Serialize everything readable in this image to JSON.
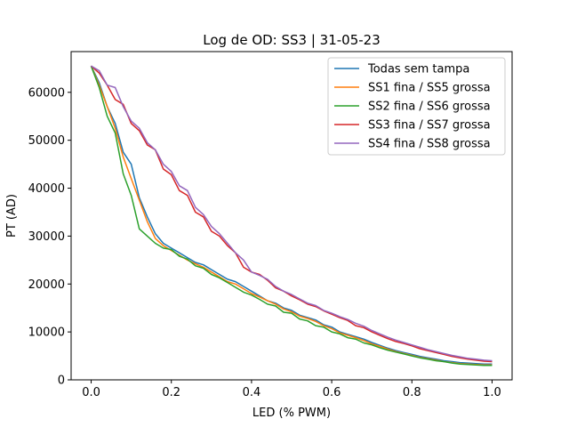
{
  "chart_data": {
    "type": "line",
    "title": "Log de OD: SS3 | 31-05-23",
    "xlabel": "LED (% PWM)",
    "ylabel": "PT (AD)",
    "xlim": [
      -0.05,
      1.05
    ],
    "ylim": [
      0,
      68500
    ],
    "xticks": [
      0.0,
      0.2,
      0.4,
      0.6,
      0.8,
      1.0
    ],
    "xtick_labels": [
      "0.0",
      "0.2",
      "0.4",
      "0.6",
      "0.8",
      "1.0"
    ],
    "yticks": [
      0,
      10000,
      20000,
      30000,
      40000,
      50000,
      60000
    ],
    "ytick_labels": [
      "0",
      "10000",
      "20000",
      "30000",
      "40000",
      "50000",
      "60000"
    ],
    "grid": false,
    "legend_position": "top-right",
    "series": [
      {
        "name": "Todas sem tampa",
        "color": "#1f77b4",
        "x": [
          0.0,
          0.02,
          0.04,
          0.06,
          0.08,
          0.1,
          0.12,
          0.14,
          0.16,
          0.18,
          0.2,
          0.22,
          0.24,
          0.26,
          0.28,
          0.3,
          0.32,
          0.34,
          0.36,
          0.38,
          0.4,
          0.42,
          0.44,
          0.46,
          0.48,
          0.5,
          0.52,
          0.54,
          0.56,
          0.58,
          0.6,
          0.62,
          0.64,
          0.66,
          0.68,
          0.7,
          0.72,
          0.74,
          0.76,
          0.78,
          0.8,
          0.82,
          0.84,
          0.86,
          0.88,
          0.9,
          0.92,
          0.94,
          0.96,
          0.98,
          1.0
        ],
        "values": [
          65500,
          62000,
          57000,
          53500,
          47500,
          45000,
          38000,
          34000,
          30500,
          28500,
          27500,
          26500,
          25500,
          24500,
          24000,
          23000,
          22000,
          21000,
          20500,
          19500,
          18500,
          17500,
          16500,
          16000,
          15000,
          14500,
          13500,
          13000,
          12500,
          11500,
          11000,
          10000,
          9500,
          9000,
          8500,
          7800,
          7200,
          6600,
          6100,
          5700,
          5300,
          4900,
          4600,
          4300,
          4000,
          3800,
          3600,
          3500,
          3400,
          3300,
          3300
        ]
      },
      {
        "name": "SS1 fina / SS5 grossa",
        "color": "#ff7f0e",
        "x": [
          0.0,
          0.02,
          0.04,
          0.06,
          0.08,
          0.1,
          0.12,
          0.14,
          0.16,
          0.18,
          0.2,
          0.22,
          0.24,
          0.26,
          0.28,
          0.3,
          0.32,
          0.34,
          0.36,
          0.38,
          0.4,
          0.42,
          0.44,
          0.46,
          0.48,
          0.5,
          0.52,
          0.54,
          0.56,
          0.58,
          0.6,
          0.62,
          0.64,
          0.66,
          0.68,
          0.7,
          0.72,
          0.74,
          0.76,
          0.78,
          0.8,
          0.82,
          0.84,
          0.86,
          0.88,
          0.9,
          0.92,
          0.94,
          0.96,
          0.98,
          1.0
        ],
        "values": [
          65500,
          61500,
          57000,
          52500,
          46500,
          42000,
          37500,
          33000,
          29500,
          28000,
          27000,
          26000,
          25000,
          24200,
          23500,
          22500,
          21500,
          20500,
          20000,
          19000,
          18000,
          17300,
          16500,
          15800,
          14800,
          14200,
          13300,
          12800,
          12200,
          11300,
          10700,
          9800,
          9300,
          8800,
          8200,
          7500,
          7000,
          6400,
          5900,
          5500,
          5100,
          4700,
          4400,
          4100,
          3800,
          3600,
          3400,
          3300,
          3200,
          3100,
          3100
        ]
      },
      {
        "name": "SS2 fina / SS6 grossa",
        "color": "#2ca02c",
        "x": [
          0.0,
          0.02,
          0.04,
          0.06,
          0.08,
          0.1,
          0.12,
          0.14,
          0.16,
          0.18,
          0.2,
          0.22,
          0.24,
          0.26,
          0.28,
          0.3,
          0.32,
          0.34,
          0.36,
          0.38,
          0.4,
          0.42,
          0.44,
          0.46,
          0.48,
          0.5,
          0.52,
          0.54,
          0.56,
          0.58,
          0.6,
          0.62,
          0.64,
          0.66,
          0.68,
          0.7,
          0.72,
          0.74,
          0.76,
          0.78,
          0.8,
          0.82,
          0.84,
          0.86,
          0.88,
          0.9,
          0.92,
          0.94,
          0.96,
          0.98,
          1.0
        ],
        "values": [
          65500,
          61000,
          55000,
          51500,
          43000,
          38500,
          31500,
          30000,
          28500,
          27500,
          27200,
          25800,
          25200,
          23800,
          23300,
          22000,
          21300,
          20300,
          19300,
          18300,
          17700,
          16800,
          15800,
          15400,
          14100,
          13900,
          12700,
          12300,
          11300,
          11000,
          10000,
          9600,
          8800,
          8500,
          7700,
          7300,
          6700,
          6200,
          5800,
          5400,
          5000,
          4600,
          4300,
          4000,
          3800,
          3500,
          3300,
          3200,
          3100,
          3000,
          3000
        ]
      },
      {
        "name": "SS3 fina / SS7 grossa",
        "color": "#d62728",
        "x": [
          0.0,
          0.02,
          0.04,
          0.06,
          0.08,
          0.1,
          0.12,
          0.14,
          0.16,
          0.18,
          0.2,
          0.22,
          0.24,
          0.26,
          0.28,
          0.3,
          0.32,
          0.34,
          0.36,
          0.38,
          0.4,
          0.42,
          0.44,
          0.46,
          0.48,
          0.5,
          0.52,
          0.54,
          0.56,
          0.58,
          0.6,
          0.62,
          0.64,
          0.66,
          0.68,
          0.7,
          0.72,
          0.74,
          0.76,
          0.78,
          0.8,
          0.82,
          0.84,
          0.86,
          0.88,
          0.9,
          0.92,
          0.94,
          0.96,
          0.98,
          1.0
        ],
        "values": [
          65500,
          64000,
          61500,
          58500,
          57500,
          53500,
          52000,
          49000,
          48000,
          44000,
          42800,
          39500,
          38500,
          35000,
          34000,
          31000,
          30000,
          28000,
          26500,
          23500,
          22500,
          22000,
          20800,
          19200,
          18500,
          17500,
          16700,
          15800,
          15300,
          14400,
          13700,
          13000,
          12400,
          11300,
          10900,
          10000,
          9300,
          8600,
          8000,
          7600,
          7100,
          6500,
          6100,
          5700,
          5300,
          4900,
          4600,
          4300,
          4100,
          3900,
          3800
        ]
      },
      {
        "name": "SS4 fina / SS8 grossa",
        "color": "#9467bd",
        "x": [
          0.0,
          0.02,
          0.04,
          0.06,
          0.08,
          0.1,
          0.12,
          0.14,
          0.16,
          0.18,
          0.2,
          0.22,
          0.24,
          0.26,
          0.28,
          0.3,
          0.32,
          0.34,
          0.36,
          0.38,
          0.4,
          0.42,
          0.44,
          0.46,
          0.48,
          0.5,
          0.52,
          0.54,
          0.56,
          0.58,
          0.6,
          0.62,
          0.64,
          0.66,
          0.68,
          0.7,
          0.72,
          0.74,
          0.76,
          0.78,
          0.8,
          0.82,
          0.84,
          0.86,
          0.88,
          0.9,
          0.92,
          0.94,
          0.96,
          0.98,
          1.0
        ],
        "values": [
          65500,
          64500,
          61500,
          61000,
          57000,
          54000,
          52500,
          49500,
          48000,
          45000,
          43500,
          40500,
          39500,
          36000,
          34500,
          32000,
          30500,
          28500,
          26500,
          25000,
          22500,
          21800,
          21000,
          19500,
          18500,
          17800,
          16900,
          16000,
          15500,
          14500,
          13900,
          13200,
          12600,
          11800,
          11200,
          10300,
          9600,
          8900,
          8300,
          7800,
          7300,
          6800,
          6300,
          5900,
          5500,
          5100,
          4800,
          4500,
          4300,
          4100,
          4000
        ]
      }
    ]
  }
}
